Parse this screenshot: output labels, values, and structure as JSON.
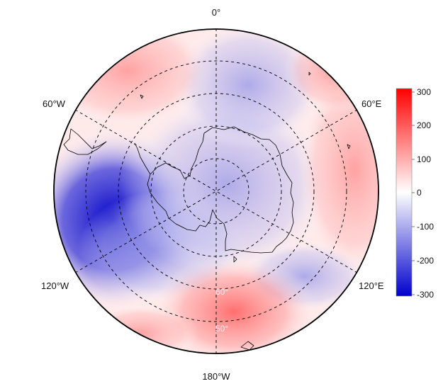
{
  "map": {
    "projection": "south-polar-stereographic",
    "longitude_labels": {
      "top": "0°",
      "upper_right": "60°E",
      "lower_right": "120°E",
      "bottom": "180°W",
      "lower_left": "120°W",
      "upper_left": "60°W"
    },
    "latitude_labels": [
      "60°",
      "50°"
    ],
    "grid": true
  },
  "colorbar": {
    "ticks": [
      "300",
      "200",
      "100",
      "0",
      "-100",
      "-200",
      "-300"
    ],
    "range": [
      -300,
      300
    ],
    "colors": {
      "max": "#ff0000",
      "mid": "#ffffff",
      "min": "#0000cc"
    }
  },
  "colors": {
    "outline": "#000000",
    "grid": "#000000",
    "coast": "#000000"
  }
}
